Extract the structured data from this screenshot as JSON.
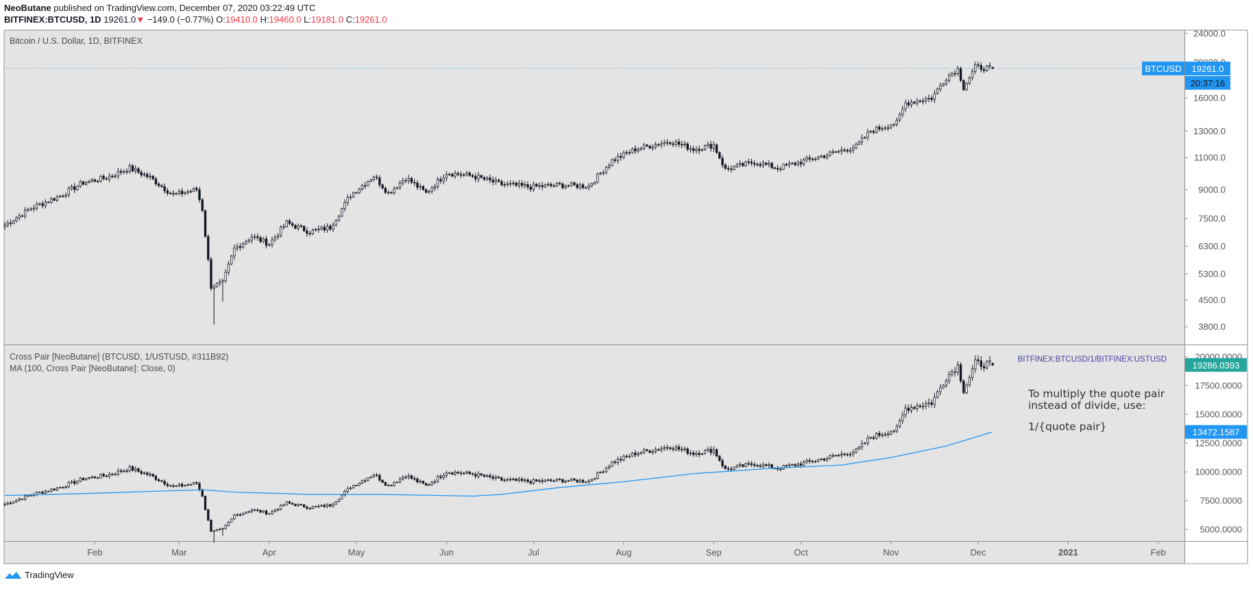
{
  "header": {
    "author": "NeoButane",
    "published_text": "published on TradingView.com, December 07, 2020 03:22:49 UTC",
    "symbol": "BITFINEX:BTCUSD, 1D",
    "last": "19261.0",
    "change": "−149.0 (−0.77%)",
    "o_label": "O:",
    "o": "19410.0",
    "h_label": "H:",
    "h": "19460.0",
    "l_label": "L:",
    "l": "19181.0",
    "c_label": "C:",
    "c": "19261.0"
  },
  "footer": {
    "brand": "TradingView"
  },
  "colors": {
    "pane_bg": "#e4e4e4",
    "candle": "#131722",
    "ma_line": "#2196f3",
    "tag_blue": "#2196f3",
    "tag_teal": "#26a69a",
    "overlay_text": "#3f3fa0"
  },
  "chart_data": [
    {
      "type": "candlestick",
      "title": "Bitcoin / U.S. Dollar, 1D, BITFINEX",
      "y_scale": "log",
      "ylim": [
        3400,
        24500
      ],
      "y_ticks": [
        "24000.0",
        "20000.0",
        "16000.0",
        "13000.0",
        "11000.0",
        "9000.0",
        "7500.0",
        "6300.0",
        "5300.0",
        "4500.0",
        "3800.0"
      ],
      "y_tick_values": [
        24000,
        20000,
        16000,
        13000,
        11000,
        9000,
        7500,
        6300,
        5300,
        4500,
        3800
      ],
      "x_labels": [
        "Feb",
        "Mar",
        "Apr",
        "May",
        "Jun",
        "Jul",
        "Aug",
        "Sep",
        "Oct",
        "Nov",
        "Dec",
        "2021",
        "Feb"
      ],
      "x_range": [
        "2020-01-01",
        "2021-02-10"
      ],
      "price_tag": {
        "symbol": "BTCUSD",
        "value": "19261.0",
        "countdown": "20:37:16"
      },
      "anchors": [
        [
          "2020-01-01",
          7200
        ],
        [
          "2020-01-10",
          8000
        ],
        [
          "2020-01-20",
          8650
        ],
        [
          "2020-01-28",
          9400
        ],
        [
          "2020-02-05",
          9700
        ],
        [
          "2020-02-13",
          10300
        ],
        [
          "2020-02-20",
          9700
        ],
        [
          "2020-02-28",
          8700
        ],
        [
          "2020-03-07",
          9000
        ],
        [
          "2020-03-09",
          7950
        ],
        [
          "2020-03-12",
          4900
        ],
        [
          "2020-03-16",
          5000
        ],
        [
          "2020-03-20",
          6200
        ],
        [
          "2020-03-26",
          6700
        ],
        [
          "2020-04-01",
          6400
        ],
        [
          "2020-04-07",
          7300
        ],
        [
          "2020-04-15",
          6900
        ],
        [
          "2020-04-22",
          7100
        ],
        [
          "2020-04-29",
          8700
        ],
        [
          "2020-05-07",
          9800
        ],
        [
          "2020-05-12",
          8800
        ],
        [
          "2020-05-18",
          9700
        ],
        [
          "2020-05-25",
          8800
        ],
        [
          "2020-06-01",
          10000
        ],
        [
          "2020-06-10",
          9800
        ],
        [
          "2020-06-20",
          9300
        ],
        [
          "2020-06-30",
          9150
        ],
        [
          "2020-07-10",
          9250
        ],
        [
          "2020-07-20",
          9200
        ],
        [
          "2020-07-28",
          10800
        ],
        [
          "2020-08-05",
          11600
        ],
        [
          "2020-08-17",
          12200
        ],
        [
          "2020-08-25",
          11600
        ],
        [
          "2020-09-01",
          11900
        ],
        [
          "2020-09-05",
          10200
        ],
        [
          "2020-09-15",
          10700
        ],
        [
          "2020-09-23",
          10300
        ],
        [
          "2020-10-01",
          10700
        ],
        [
          "2020-10-10",
          11200
        ],
        [
          "2020-10-20",
          11800
        ],
        [
          "2020-10-25",
          13000
        ],
        [
          "2020-11-03",
          13700
        ],
        [
          "2020-11-06",
          15500
        ],
        [
          "2020-11-15",
          16000
        ],
        [
          "2020-11-20",
          18200
        ],
        [
          "2020-11-24",
          19200
        ],
        [
          "2020-11-26",
          17100
        ],
        [
          "2020-11-30",
          19400
        ],
        [
          "2020-12-06",
          19261
        ]
      ],
      "notable_lows": [
        [
          "2020-03-13",
          3850
        ],
        [
          "2020-03-16",
          4450
        ]
      ]
    },
    {
      "type": "candlestick",
      "title": "Cross Pair [NeoButane] (BTCUSD, 1/USTUSD, #311B92)",
      "subtitle": "MA (100, Cross Pair [NeoButane]: Close, 0)",
      "overlay_symbol": "BITFINEX:BTCUSD/1/BITFINEX:USTUSD",
      "ylim": [
        4000,
        21000
      ],
      "y_ticks": [
        "20000.0000",
        "17500.0000",
        "15000.0000",
        "12500.0000",
        "10000.0000",
        "7500.0000",
        "5000.0000"
      ],
      "y_tick_values": [
        20000,
        17500,
        15000,
        12500,
        10000,
        7500,
        5000
      ],
      "price_tag": "19286.0393",
      "ma_tag": "13472.1587",
      "annotation": {
        "line1": "To multiply the quote pair",
        "line2": "instead of divide, use:",
        "line3": "1/{quote pair}"
      },
      "ma_series": {
        "name": "MA (100)",
        "points": [
          [
            "2020-01-01",
            7950
          ],
          [
            "2020-02-01",
            8150
          ],
          [
            "2020-03-09",
            8450
          ],
          [
            "2020-03-20",
            8250
          ],
          [
            "2020-04-15",
            8050
          ],
          [
            "2020-05-10",
            8050
          ],
          [
            "2020-06-10",
            7900
          ],
          [
            "2020-06-20",
            8050
          ],
          [
            "2020-07-10",
            8650
          ],
          [
            "2020-08-01",
            9150
          ],
          [
            "2020-08-25",
            9850
          ],
          [
            "2020-09-20",
            10300
          ],
          [
            "2020-10-15",
            10600
          ],
          [
            "2020-11-01",
            11250
          ],
          [
            "2020-11-20",
            12250
          ],
          [
            "2020-12-06",
            13472
          ]
        ]
      }
    }
  ]
}
